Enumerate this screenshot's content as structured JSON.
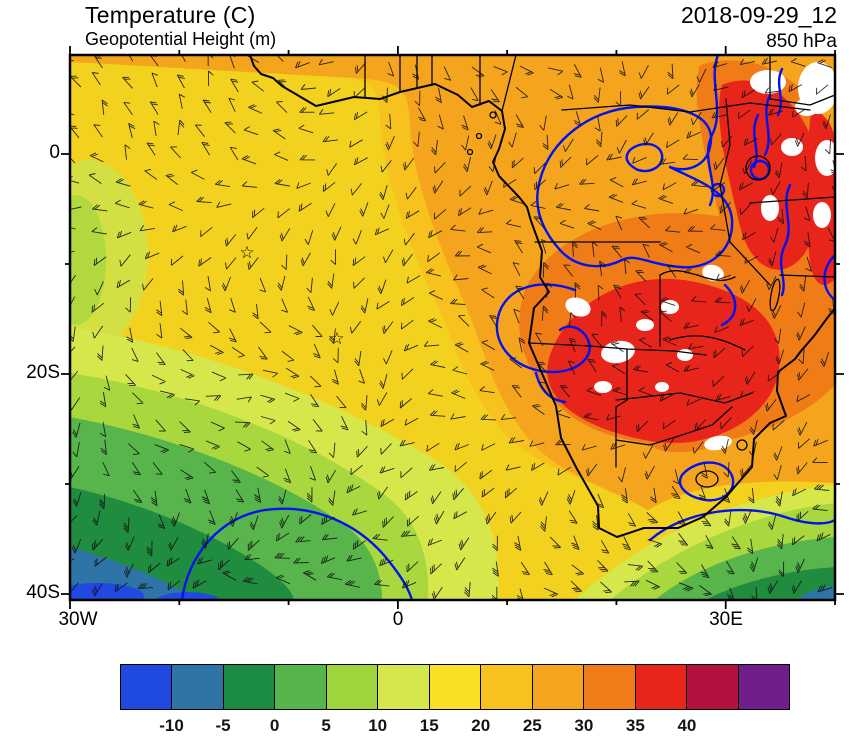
{
  "header": {
    "title": "Temperature (C)",
    "subtitle": "Geopotential Height (m)",
    "datetime": "2018-09-29_12",
    "level": "850 hPa"
  },
  "map": {
    "y_axis_labels": [
      "0",
      "20S",
      "40S"
    ],
    "x_axis_labels": [
      "30W",
      "0",
      "30E"
    ],
    "marker_symbol": "star",
    "contour_color": "#0012ef",
    "coastline_color": "#000000"
  },
  "colorbar": {
    "tick_labels": [
      "-10",
      "-5",
      "0",
      "5",
      "10",
      "15",
      "20",
      "25",
      "30",
      "35",
      "40"
    ],
    "colors": [
      "#2049e0",
      "#2e74a6",
      "#1c8c42",
      "#55b54a",
      "#9ed43c",
      "#d6e74c",
      "#f9e027",
      "#f7c11e",
      "#f5a51d",
      "#f07c18",
      "#e8251a",
      "#b4123e",
      "#701e8c"
    ]
  },
  "chart_data": {
    "type": "heatmap",
    "title": "Temperature (C)",
    "overlay_contours": "Geopotential Height (m)",
    "valid_time": "2018-09-29_12",
    "pressure_level": "850 hPa",
    "region": "Africa / South Atlantic",
    "x_tick_labels": [
      "30W",
      "0",
      "30E"
    ],
    "y_tick_labels": [
      "0",
      "20S",
      "40S"
    ],
    "temperature_scale_c": [
      -10,
      -5,
      0,
      5,
      10,
      15,
      20,
      25,
      30,
      35,
      40
    ],
    "palette_hex": [
      "#2049e0",
      "#2e74a6",
      "#1c8c42",
      "#55b54a",
      "#9ed43c",
      "#d6e74c",
      "#f9e027",
      "#f7c11e",
      "#f5a51d",
      "#f07c18",
      "#e8251a",
      "#b4123e",
      "#701e8c"
    ],
    "field_summary": {
      "warm_core_c": "30-35 over Angola/Zambia/Zimbabwe and near the northeast edge",
      "warm_band_c": "20-30 across central Africa and the tropical Atlantic",
      "background_c": "10-20 over the subtropical Atlantic (yellow/yellow-green)",
      "cool_sector_c": "-10 to 5 in the far southwest and along the southern edge",
      "legend_position": "bottom",
      "grid": false
    },
    "symbols": {
      "wind_barbs": true,
      "station_markers": 2,
      "geopotential_contours": "blue"
    }
  }
}
